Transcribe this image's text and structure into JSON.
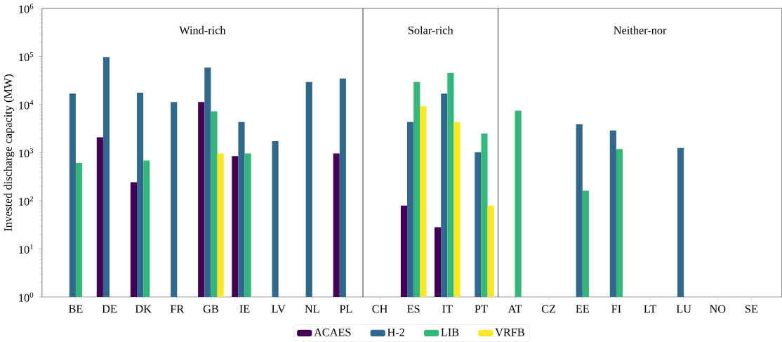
{
  "chart_data": {
    "type": "bar",
    "ylabel": "Invested discharge capacity (MW)",
    "categories": [
      "BE",
      "DE",
      "DK",
      "FR",
      "GB",
      "IE",
      "LV",
      "NL",
      "PL",
      "CH",
      "ES",
      "IT",
      "PT",
      "AT",
      "CZ",
      "EE",
      "FI",
      "LT",
      "LU",
      "NO",
      "SE"
    ],
    "series": [
      {
        "name": "ACAES",
        "color": "#440154",
        "values": [
          null,
          2100,
          245,
          null,
          11400,
          850,
          null,
          null,
          970,
          null,
          80,
          28.5,
          null,
          null,
          null,
          null,
          null,
          null,
          null,
          null,
          null
        ]
      },
      {
        "name": "H-2",
        "color": "#31688e",
        "values": [
          17000,
          98000,
          17800,
          11400,
          59000,
          4350,
          1740,
          29500,
          35000,
          null,
          4350,
          17000,
          1030,
          null,
          null,
          3900,
          2900,
          null,
          1260,
          null,
          null
        ]
      },
      {
        "name": "LIB",
        "color": "#35b779",
        "values": [
          620,
          null,
          690,
          null,
          7300,
          970,
          null,
          null,
          null,
          null,
          29500,
          46000,
          2500,
          7500,
          null,
          163,
          1190,
          null,
          null,
          null,
          null
        ]
      },
      {
        "name": "VRFB",
        "color": "#fde725",
        "values": [
          null,
          null,
          null,
          null,
          970,
          null,
          null,
          null,
          null,
          null,
          9300,
          4350,
          80,
          null,
          null,
          null,
          null,
          null,
          null,
          null,
          null
        ]
      }
    ],
    "log": "y",
    "ylim": [
      1,
      1000000
    ],
    "yticks": [
      {
        "value": 1,
        "label": "10$^{0}$"
      },
      {
        "value": 10,
        "label": "10$^{1}$"
      },
      {
        "value": 100,
        "label": "10$^{2}$"
      },
      {
        "value": 1000,
        "label": "10$^{3}$"
      },
      {
        "value": 10000,
        "label": "10$^{4}$"
      },
      {
        "value": 100000,
        "label": "10$^{5}$"
      },
      {
        "value": 1000000,
        "label": "10$^{6}$"
      }
    ],
    "annotations": [
      "Wind-rich",
      "Solar-rich",
      "Neither-nor"
    ],
    "legend": "bottom"
  }
}
